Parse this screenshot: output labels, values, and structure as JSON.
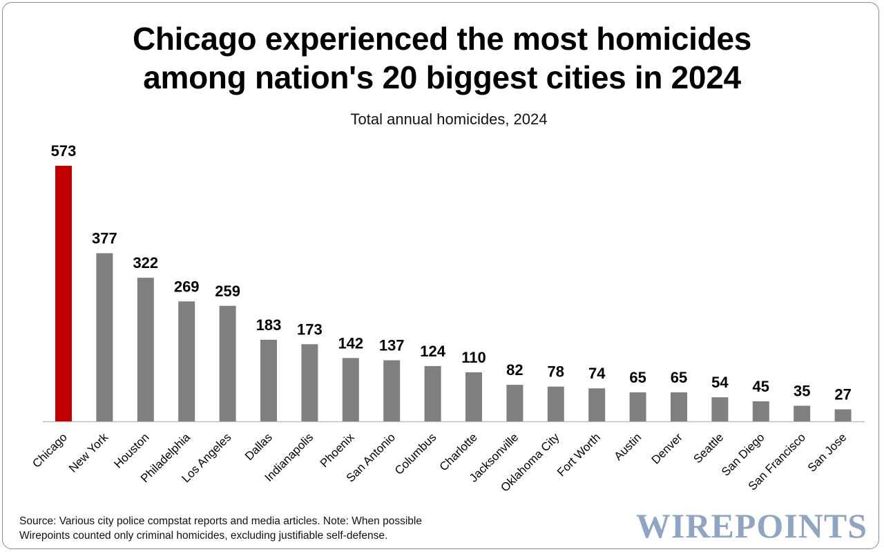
{
  "chart_data": {
    "type": "bar",
    "title": "Chicago experienced the most homicides\namong nation's 20 biggest cities in 2024",
    "subtitle": "Total annual homicides, 2024",
    "categories": [
      "Chicago",
      "New York",
      "Houston",
      "Philadelphia",
      "Los Angeles",
      "Dallas",
      "Indianapolis",
      "Phoenix",
      "San Antonio",
      "Columbus",
      "Charlotte",
      "Jacksonville",
      "Oklahoma City",
      "Fort Worth",
      "Austin",
      "Denver",
      "Seattle",
      "San Diego",
      "San Francisco",
      "San Jose"
    ],
    "values": [
      573,
      377,
      322,
      269,
      259,
      183,
      173,
      142,
      137,
      124,
      110,
      82,
      78,
      74,
      65,
      65,
      54,
      45,
      35,
      27
    ],
    "data_labels": [
      "573",
      "377",
      "322",
      "269",
      "259",
      "183",
      "173",
      "142",
      "137",
      "124",
      "110",
      "82",
      "78",
      "74",
      "65",
      "65",
      "54",
      "45",
      "35",
      "27"
    ],
    "colors": {
      "highlight": "#c00000",
      "default": "#7f7f7f",
      "axis": "#bfbfbf"
    },
    "highlight_index": 0,
    "ylim": [
      0,
      573
    ],
    "grid": false,
    "legend": "none",
    "xlabel": "",
    "ylabel": ""
  },
  "footnote": "Source: Various city police compstat reports and media articles. Note: When possible\nWirepoints counted only criminal homicides, excluding justifiable self-defense.",
  "logo_text": "WIREPOINTS"
}
